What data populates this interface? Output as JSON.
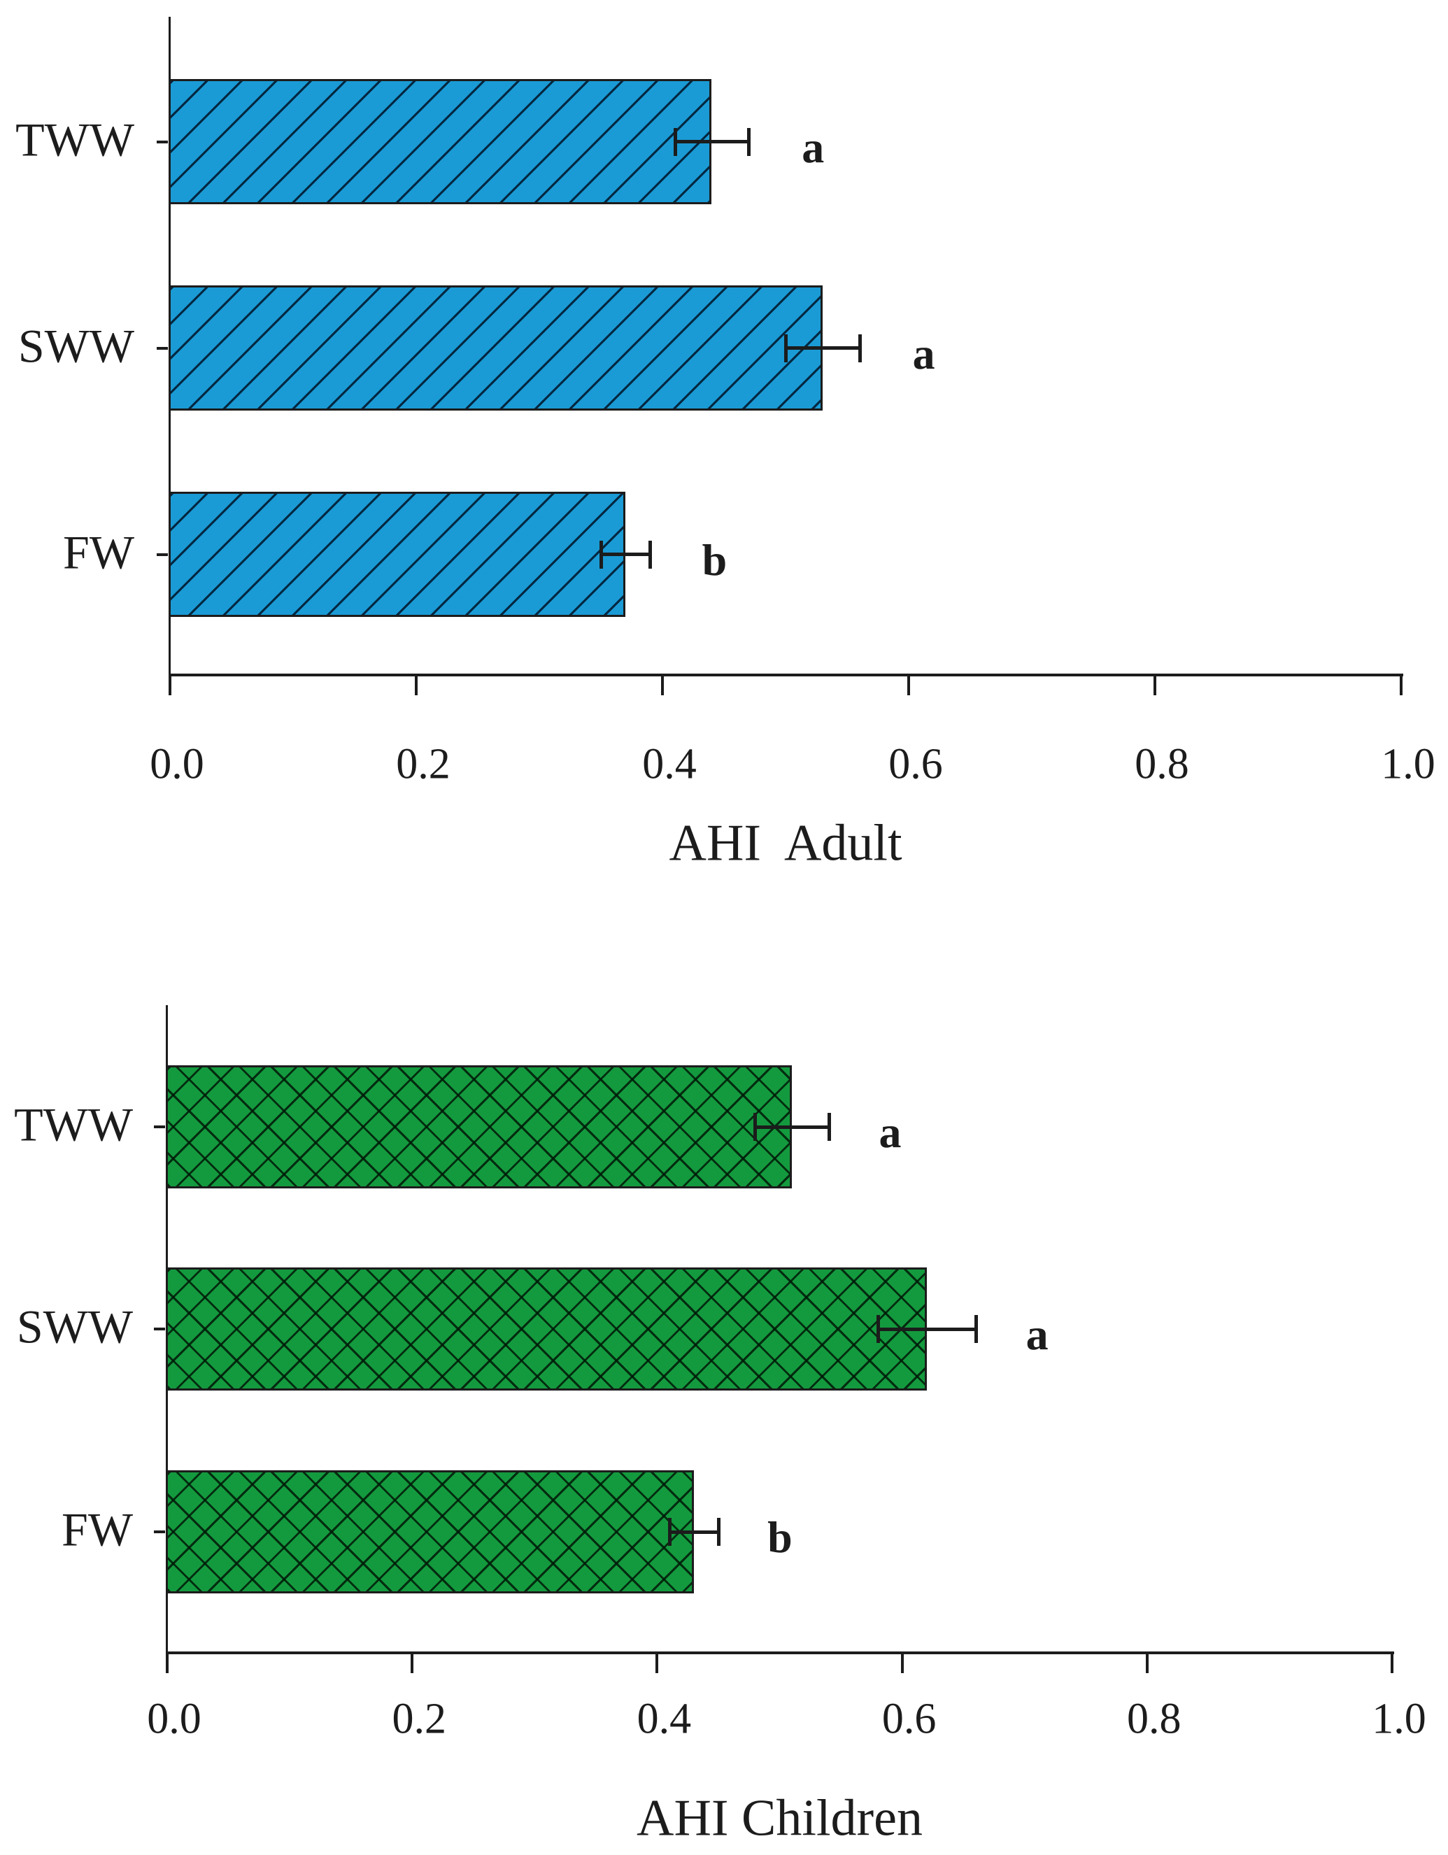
{
  "chart_data": [
    {
      "type": "bar",
      "orientation": "horizontal",
      "title": "AHI  Adult",
      "xlabel": "AHI  Adult",
      "categories": [
        "TWW",
        "SWW",
        "FW"
      ],
      "values": [
        0.44,
        0.53,
        0.37
      ],
      "errors": [
        0.03,
        0.03,
        0.02
      ],
      "sig_labels": [
        "a",
        "a",
        "b"
      ],
      "xlim": [
        0.0,
        1.0
      ],
      "xticks": [
        "0.0",
        "0.2",
        "0.4",
        "0.6",
        "0.8",
        "1.0"
      ],
      "bar_color": "#1a9bd5",
      "hatch": "diagonal-forward",
      "hatch_line_color": "rgba(0,20,40,0.85)",
      "grid": false,
      "legend": "none"
    },
    {
      "type": "bar",
      "orientation": "horizontal",
      "title": "AHI Children",
      "xlabel": "AHI Children",
      "categories": [
        "TWW",
        "SWW",
        "FW"
      ],
      "values": [
        0.51,
        0.62,
        0.43
      ],
      "errors": [
        0.03,
        0.04,
        0.02
      ],
      "sig_labels": [
        "a",
        "a",
        "b"
      ],
      "xlim": [
        0.0,
        1.0
      ],
      "xticks": [
        "0.0",
        "0.2",
        "0.4",
        "0.6",
        "0.8",
        "1.0"
      ],
      "bar_color": "#149a3e",
      "hatch": "cross-diagonal",
      "hatch_line_color": "rgba(0,25,8,0.85)",
      "grid": false,
      "legend": "none"
    }
  ]
}
